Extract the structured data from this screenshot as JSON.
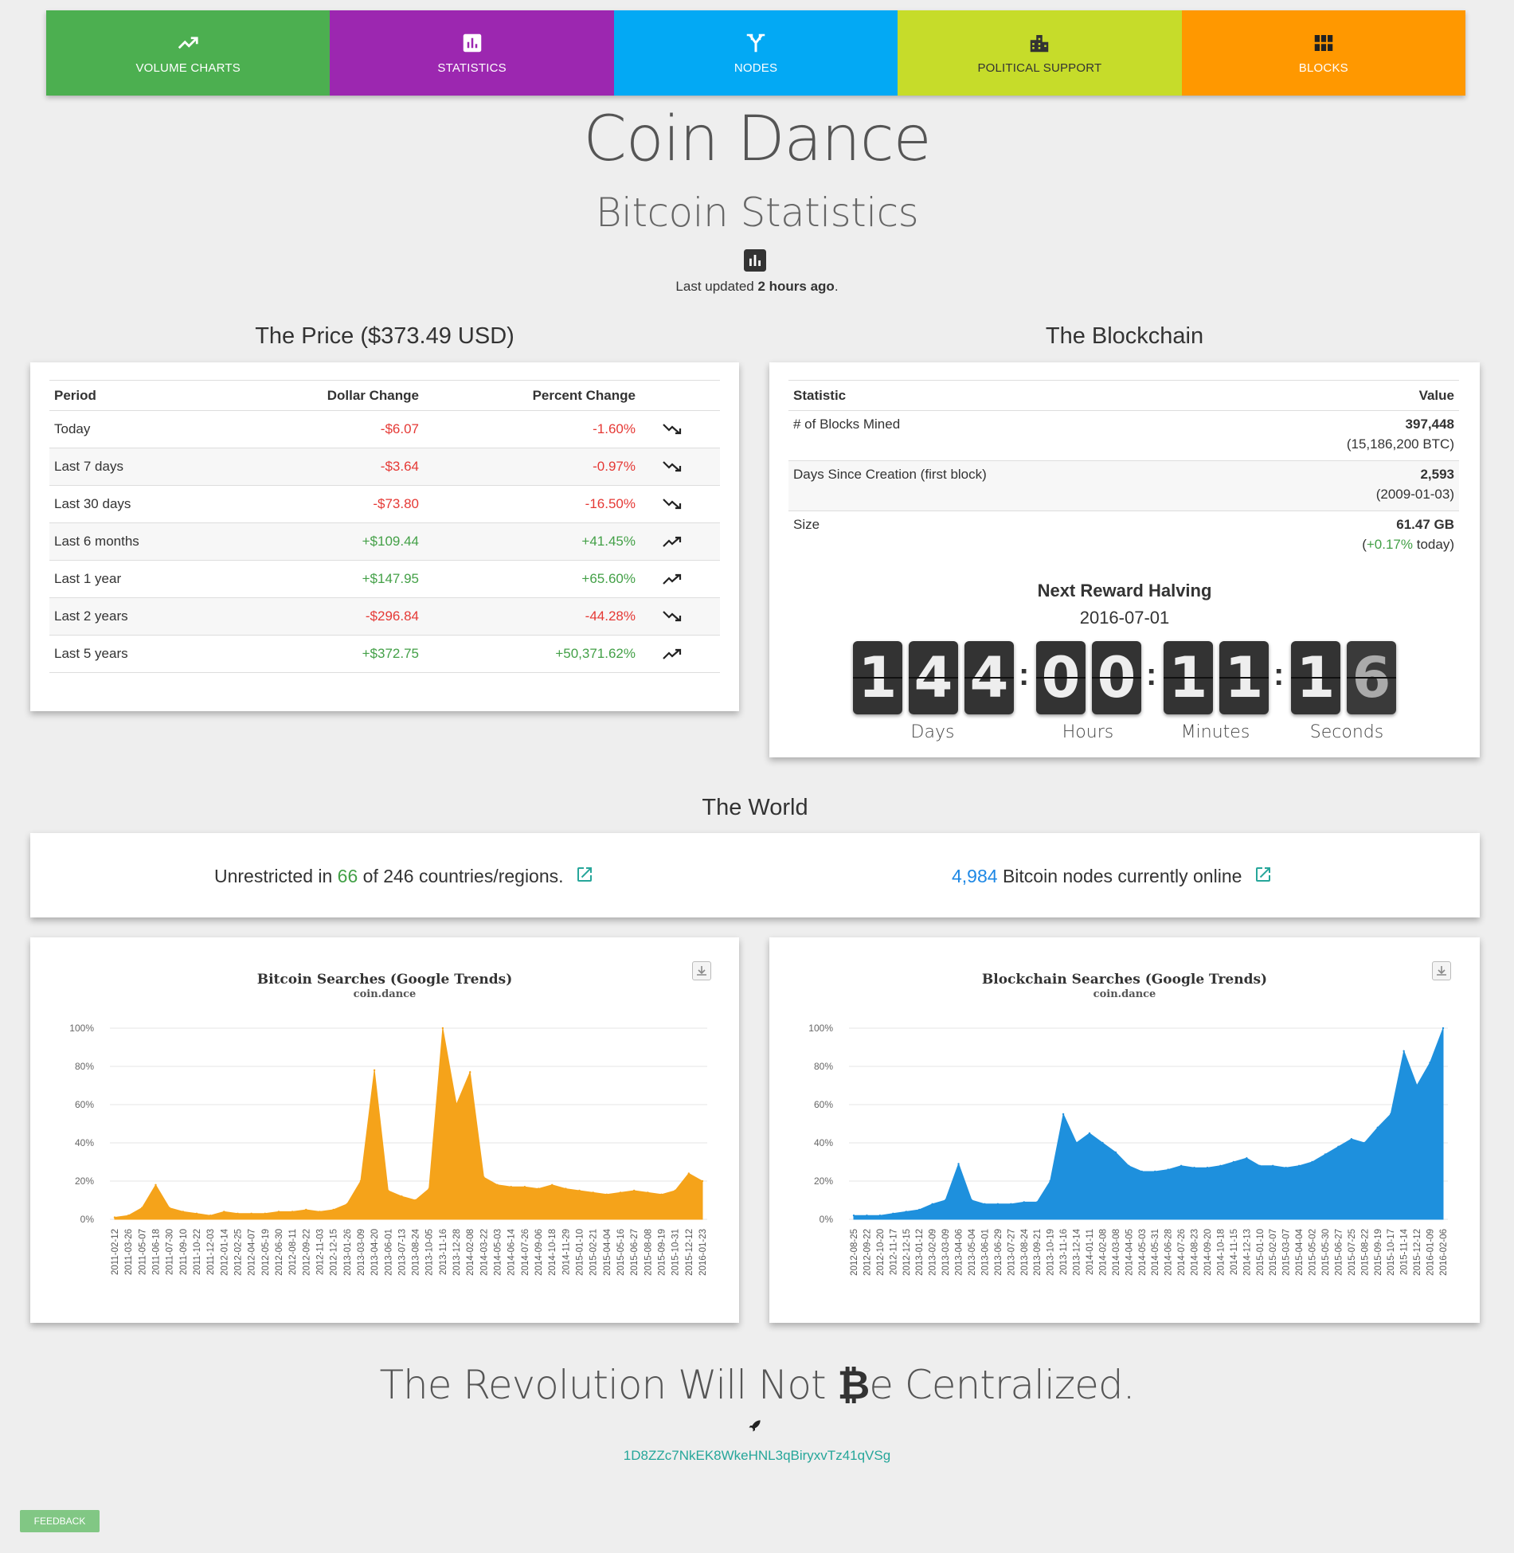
{
  "nav": {
    "items": [
      {
        "label": "VOLUME CHARTS",
        "color": "#4caf50",
        "icon": "trending-up-icon"
      },
      {
        "label": "STATISTICS",
        "color": "#9c27b0",
        "icon": "bar-chart-icon"
      },
      {
        "label": "NODES",
        "color": "#03a9f4",
        "icon": "merge-icon"
      },
      {
        "label": "POLITICAL SUPPORT",
        "color": "#c6dc2a",
        "icon": "city-icon"
      },
      {
        "label": "BLOCKS",
        "color": "#ff9800",
        "icon": "grid-icon"
      }
    ]
  },
  "header": {
    "title": "Coin Dance",
    "subtitle": "Bitcoin Statistics",
    "updated_prefix": "Last updated",
    "updated_value": "2 hours ago",
    "updated_suffix": "."
  },
  "price": {
    "heading": "The Price ($373.49 USD)",
    "columns": [
      "Period",
      "Dollar Change",
      "Percent Change"
    ],
    "rows": [
      {
        "period": "Today",
        "dollar": "-$6.07",
        "percent": "-1.60%",
        "dir": "down"
      },
      {
        "period": "Last 7 days",
        "dollar": "-$3.64",
        "percent": "-0.97%",
        "dir": "down"
      },
      {
        "period": "Last 30 days",
        "dollar": "-$73.80",
        "percent": "-16.50%",
        "dir": "down"
      },
      {
        "period": "Last 6 months",
        "dollar": "+$109.44",
        "percent": "+41.45%",
        "dir": "up"
      },
      {
        "period": "Last 1 year",
        "dollar": "+$147.95",
        "percent": "+65.60%",
        "dir": "up"
      },
      {
        "period": "Last 2 years",
        "dollar": "-$296.84",
        "percent": "-44.28%",
        "dir": "down"
      },
      {
        "period": "Last 5 years",
        "dollar": "+$372.75",
        "percent": "+50,371.62%",
        "dir": "up"
      }
    ]
  },
  "blockchain": {
    "heading": "The Blockchain",
    "columns": [
      "Statistic",
      "Value"
    ],
    "rows": [
      {
        "label": "# of Blocks Mined",
        "value": "397,448",
        "sub": "(15,186,200 BTC)"
      },
      {
        "label": "Days Since Creation (first block)",
        "value": "2,593",
        "sub": "(2009-01-03)"
      },
      {
        "label": "Size",
        "value": "61.47 GB",
        "sub_open": "(",
        "sub_green": "+0.17%",
        "sub_rest": " today)"
      }
    ],
    "halving_title": "Next Reward Halving",
    "halving_date": "2016-07-01",
    "countdown": {
      "days": [
        "1",
        "4",
        "4"
      ],
      "hours": [
        "0",
        "0"
      ],
      "minutes": [
        "1",
        "1"
      ],
      "seconds": [
        "1",
        "6"
      ],
      "labels": [
        "Days",
        "Hours",
        "Minutes",
        "Seconds"
      ]
    }
  },
  "world": {
    "heading": "The World",
    "left_pre": "Unrestricted in ",
    "left_num": "66",
    "left_post": " of 246 countries/regions.",
    "right_num": "4,984",
    "right_post": " Bitcoin nodes currently online"
  },
  "chart_data": [
    {
      "type": "area",
      "title": "Bitcoin Searches (Google Trends)",
      "subtitle": "coin.dance",
      "color": "#f5a31a",
      "ylim": [
        0,
        100
      ],
      "yticks": [
        "0%",
        "20%",
        "40%",
        "60%",
        "80%",
        "100%"
      ],
      "x": [
        "2011-02-12",
        "2011-03-26",
        "2011-05-07",
        "2011-06-18",
        "2011-07-30",
        "2011-09-10",
        "2011-10-22",
        "2011-12-03",
        "2012-01-14",
        "2012-02-25",
        "2012-04-07",
        "2012-05-19",
        "2012-06-30",
        "2012-08-11",
        "2012-09-22",
        "2012-11-03",
        "2012-12-15",
        "2013-01-26",
        "2013-03-09",
        "2013-04-20",
        "2013-06-01",
        "2013-07-13",
        "2013-08-24",
        "2013-10-05",
        "2013-11-16",
        "2013-12-28",
        "2014-02-08",
        "2014-03-22",
        "2014-05-03",
        "2014-06-14",
        "2014-07-26",
        "2014-09-06",
        "2014-10-18",
        "2014-11-29",
        "2015-01-10",
        "2015-02-21",
        "2015-04-04",
        "2015-05-16",
        "2015-06-27",
        "2015-08-08",
        "2015-09-19",
        "2015-10-31",
        "2015-12-12",
        "2016-01-23"
      ],
      "values": [
        1,
        2,
        6,
        18,
        6,
        4,
        3,
        2,
        4,
        3,
        3,
        3,
        4,
        4,
        5,
        4,
        5,
        8,
        20,
        78,
        15,
        12,
        10,
        16,
        100,
        60,
        77,
        22,
        18,
        17,
        17,
        16,
        18,
        16,
        15,
        14,
        13,
        14,
        15,
        14,
        13,
        15,
        24,
        20
      ]
    },
    {
      "type": "area",
      "title": "Blockchain Searches (Google Trends)",
      "subtitle": "coin.dance",
      "color": "#1e90dd",
      "ylim": [
        0,
        100
      ],
      "yticks": [
        "0%",
        "20%",
        "40%",
        "60%",
        "80%",
        "100%"
      ],
      "x": [
        "2012-08-25",
        "2012-09-22",
        "2012-10-20",
        "2012-11-17",
        "2012-12-15",
        "2013-01-12",
        "2013-02-09",
        "2013-03-09",
        "2013-04-06",
        "2013-05-04",
        "2013-06-01",
        "2013-06-29",
        "2013-07-27",
        "2013-08-24",
        "2013-09-21",
        "2013-10-19",
        "2013-11-16",
        "2013-12-14",
        "2014-01-11",
        "2014-02-08",
        "2014-03-08",
        "2014-04-05",
        "2014-05-03",
        "2014-05-31",
        "2014-06-28",
        "2014-07-26",
        "2014-08-23",
        "2014-09-20",
        "2014-10-18",
        "2014-11-15",
        "2014-12-13",
        "2015-01-10",
        "2015-02-07",
        "2015-03-07",
        "2015-04-04",
        "2015-05-02",
        "2015-05-30",
        "2015-06-27",
        "2015-07-25",
        "2015-08-22",
        "2015-09-19",
        "2015-10-17",
        "2015-11-14",
        "2015-12-12",
        "2016-01-09",
        "2016-02-06"
      ],
      "values": [
        2,
        2,
        2,
        3,
        4,
        5,
        8,
        10,
        29,
        10,
        8,
        8,
        8,
        9,
        9,
        20,
        55,
        40,
        45,
        40,
        35,
        28,
        25,
        25,
        26,
        28,
        27,
        27,
        28,
        30,
        32,
        28,
        28,
        27,
        28,
        30,
        34,
        38,
        42,
        40,
        48,
        55,
        88,
        70,
        82,
        100
      ]
    }
  ],
  "footer": {
    "motto_pre": "The Revolution Will Not ",
    "motto_b": "₿",
    "motto_post": "e Centralized.",
    "address": "1D8ZZc7NkEK8WkeHNL3qBiryxvTz41qVSg",
    "feedback": "FEEDBACK"
  }
}
